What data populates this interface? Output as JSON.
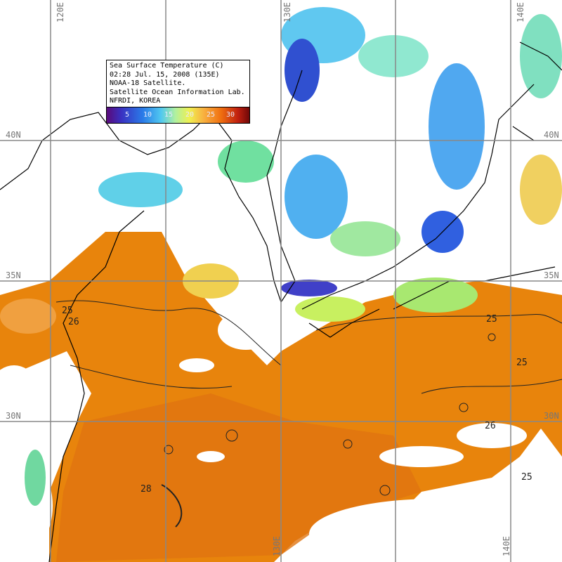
{
  "legend": {
    "title": "Sea Surface Temperature (C)",
    "datetime": "02:28 Jul. 15, 2008 (135E)",
    "satellite": "NOAA-18 Satellite.",
    "lab": "Satellite Ocean Information Lab.",
    "org": "NFRDI, KOREA",
    "colorbar_ticks": [
      "5",
      "10",
      "15",
      "20",
      "25",
      "30"
    ],
    "colorbar_range_c": [
      0,
      35
    ]
  },
  "grid": {
    "longitudes": [
      "120E",
      "125E",
      "130E",
      "135E",
      "140E"
    ],
    "latitudes": [
      "40N",
      "35N",
      "30N"
    ],
    "top_labels": [
      "120E",
      "140E"
    ],
    "bottom_labels": [
      "140E"
    ]
  },
  "contour_labels": [
    "25",
    "25",
    "25",
    "25",
    "26",
    "28",
    "26"
  ],
  "colors": {
    "warm_sea": "#e8840c",
    "cloud_or_land": "#ffffff",
    "coastline": "#000000",
    "grid": "#888888"
  }
}
